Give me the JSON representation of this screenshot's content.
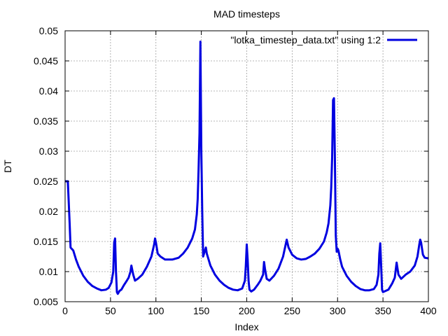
{
  "chart_data": {
    "type": "line",
    "title": "MAD timesteps",
    "xlabel": "Index",
    "ylabel": "DT",
    "xlim": [
      0,
      400
    ],
    "ylim": [
      0.005,
      0.05
    ],
    "xticks": [
      "0",
      "50",
      "100",
      "150",
      "200",
      "250",
      "300",
      "350",
      "400"
    ],
    "yticks": [
      "0.005",
      "0.01",
      "0.015",
      "0.02",
      "0.025",
      "0.03",
      "0.035",
      "0.04",
      "0.045",
      "0.05"
    ],
    "grid": true,
    "legend_position": "top-right",
    "series": [
      {
        "name": "\"lotka_timestep_data.txt\" using 1:2",
        "color": "#0000e0",
        "points": [
          [
            0,
            0.025
          ],
          [
            3,
            0.025
          ],
          [
            5,
            0.018
          ],
          [
            6,
            0.014
          ],
          [
            9,
            0.0135
          ],
          [
            12,
            0.012
          ],
          [
            15,
            0.0108
          ],
          [
            20,
            0.0093
          ],
          [
            25,
            0.0083
          ],
          [
            30,
            0.0076
          ],
          [
            35,
            0.0072
          ],
          [
            40,
            0.0069
          ],
          [
            45,
            0.007
          ],
          [
            48,
            0.0073
          ],
          [
            51,
            0.0082
          ],
          [
            53,
            0.01
          ],
          [
            54,
            0.0148
          ],
          [
            55,
            0.0155
          ],
          [
            56,
            0.01
          ],
          [
            57,
            0.0066
          ],
          [
            58,
            0.0063
          ],
          [
            60,
            0.0068
          ],
          [
            62,
            0.007
          ],
          [
            65,
            0.0078
          ],
          [
            68,
            0.0085
          ],
          [
            70,
            0.009
          ],
          [
            72,
            0.01
          ],
          [
            73,
            0.011
          ],
          [
            75,
            0.0095
          ],
          [
            77,
            0.0085
          ],
          [
            80,
            0.0088
          ],
          [
            85,
            0.0095
          ],
          [
            90,
            0.0108
          ],
          [
            95,
            0.0125
          ],
          [
            98,
            0.0145
          ],
          [
            99,
            0.0155
          ],
          [
            100,
            0.0148
          ],
          [
            102,
            0.013
          ],
          [
            105,
            0.0125
          ],
          [
            110,
            0.012
          ],
          [
            118,
            0.012
          ],
          [
            125,
            0.0123
          ],
          [
            130,
            0.013
          ],
          [
            135,
            0.014
          ],
          [
            140,
            0.0155
          ],
          [
            143,
            0.017
          ],
          [
            145,
            0.0195
          ],
          [
            146,
            0.022
          ],
          [
            147,
            0.027
          ],
          [
            148,
            0.033
          ],
          [
            149,
            0.0482
          ],
          [
            150,
            0.03
          ],
          [
            151,
            0.02
          ],
          [
            152,
            0.0125
          ],
          [
            153,
            0.013
          ],
          [
            154,
            0.0135
          ],
          [
            155,
            0.014
          ],
          [
            156,
            0.013
          ],
          [
            158,
            0.012
          ],
          [
            160,
            0.011
          ],
          [
            165,
            0.0095
          ],
          [
            170,
            0.0085
          ],
          [
            175,
            0.0078
          ],
          [
            180,
            0.0073
          ],
          [
            185,
            0.007
          ],
          [
            190,
            0.0069
          ],
          [
            195,
            0.0072
          ],
          [
            198,
            0.0085
          ],
          [
            199,
            0.011
          ],
          [
            200,
            0.0145
          ],
          [
            201,
            0.012
          ],
          [
            202,
            0.0085
          ],
          [
            203,
            0.007
          ],
          [
            205,
            0.0067
          ],
          [
            208,
            0.007
          ],
          [
            212,
            0.0078
          ],
          [
            215,
            0.0085
          ],
          [
            218,
            0.0095
          ],
          [
            219,
            0.0116
          ],
          [
            220,
            0.0105
          ],
          [
            222,
            0.0088
          ],
          [
            225,
            0.0085
          ],
          [
            230,
            0.0093
          ],
          [
            235,
            0.0105
          ],
          [
            240,
            0.0125
          ],
          [
            244,
            0.0153
          ],
          [
            246,
            0.014
          ],
          [
            250,
            0.0128
          ],
          [
            255,
            0.0122
          ],
          [
            260,
            0.012
          ],
          [
            265,
            0.0121
          ],
          [
            270,
            0.0125
          ],
          [
            275,
            0.013
          ],
          [
            280,
            0.0138
          ],
          [
            285,
            0.015
          ],
          [
            288,
            0.0165
          ],
          [
            290,
            0.018
          ],
          [
            292,
            0.021
          ],
          [
            293,
            0.024
          ],
          [
            294,
            0.029
          ],
          [
            295,
            0.0385
          ],
          [
            296,
            0.0388
          ],
          [
            297,
            0.029
          ],
          [
            298,
            0.016
          ],
          [
            299,
            0.0133
          ],
          [
            300,
            0.0138
          ],
          [
            301,
            0.0135
          ],
          [
            303,
            0.012
          ],
          [
            305,
            0.0108
          ],
          [
            310,
            0.0093
          ],
          [
            315,
            0.0083
          ],
          [
            320,
            0.0076
          ],
          [
            325,
            0.0071
          ],
          [
            330,
            0.0069
          ],
          [
            335,
            0.0069
          ],
          [
            340,
            0.0071
          ],
          [
            343,
            0.0078
          ],
          [
            345,
            0.0095
          ],
          [
            346,
            0.013
          ],
          [
            347,
            0.0147
          ],
          [
            348,
            0.011
          ],
          [
            349,
            0.007
          ],
          [
            350,
            0.0066
          ],
          [
            353,
            0.0068
          ],
          [
            356,
            0.007
          ],
          [
            360,
            0.008
          ],
          [
            363,
            0.009
          ],
          [
            365,
            0.0115
          ],
          [
            367,
            0.0095
          ],
          [
            370,
            0.0088
          ],
          [
            375,
            0.0095
          ],
          [
            380,
            0.01
          ],
          [
            385,
            0.011
          ],
          [
            388,
            0.0125
          ],
          [
            390,
            0.0145
          ],
          [
            391,
            0.0153
          ],
          [
            392,
            0.0148
          ],
          [
            394,
            0.0128
          ],
          [
            396,
            0.0123
          ],
          [
            400,
            0.0122
          ]
        ]
      }
    ]
  }
}
